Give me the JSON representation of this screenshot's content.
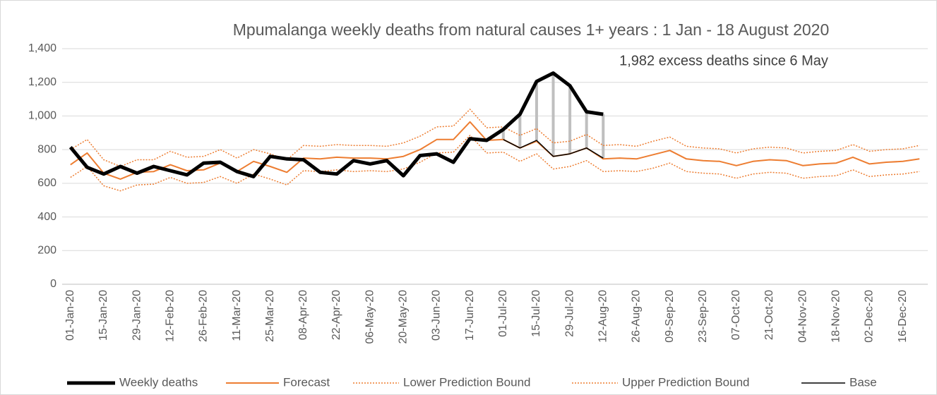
{
  "chart_data": {
    "type": "line",
    "title": "Mpumalanga weekly deaths from natural causes 1+ years : 1 Jan - 18 August 2020",
    "annotation": "1,982 excess deaths since 6 May",
    "categories": [
      "01-Jan-20",
      null,
      "15-Jan-20",
      null,
      "29-Jan-20",
      null,
      "12-Feb-20",
      null,
      "26-Feb-20",
      null,
      "11-Mar-20",
      null,
      "25-Mar-20",
      null,
      "08-Apr-20",
      null,
      "22-Apr-20",
      null,
      "06-May-20",
      null,
      "20-May-20",
      null,
      "03-Jun-20",
      null,
      "17-Jun-20",
      null,
      "01-Jul-20",
      null,
      "15-Jul-20",
      null,
      "29-Jul-20",
      null,
      "12-Aug-20",
      null,
      "26-Aug-20",
      null,
      "09-Sep-20",
      null,
      "23-Sep-20",
      null,
      "07-Oct-20",
      null,
      "21-Oct-20",
      null,
      "04-Nov-20",
      null,
      "18-Nov-20",
      null,
      "02-Dec-20",
      null,
      "16-Dec-20",
      null
    ],
    "series": [
      {
        "name": "Weekly deaths",
        "color": "#000000",
        "linestyle": "thick",
        "values": [
          815,
          695,
          655,
          700,
          660,
          700,
          675,
          650,
          720,
          725,
          670,
          640,
          760,
          745,
          740,
          665,
          655,
          735,
          715,
          735,
          645,
          765,
          775,
          725,
          865,
          855,
          920,
          1010,
          1205,
          1255,
          1180,
          1025,
          1010,
          null,
          null,
          null,
          null,
          null,
          null,
          null,
          null,
          null,
          null,
          null,
          null,
          null,
          null,
          null,
          null,
          null,
          null,
          null
        ]
      },
      {
        "name": "Forecast",
        "color": "#ed7d31",
        "linestyle": "solid",
        "values": [
          710,
          780,
          660,
          625,
          665,
          670,
          710,
          675,
          680,
          720,
          670,
          730,
          700,
          665,
          750,
          745,
          755,
          750,
          750,
          745,
          760,
          800,
          860,
          860,
          965,
          855,
          860,
          810,
          850,
          760,
          775,
          810,
          745,
          750,
          745,
          770,
          795,
          745,
          735,
          730,
          705,
          730,
          740,
          735,
          705,
          715,
          720,
          755,
          715,
          725,
          730,
          745
        ]
      },
      {
        "name": "Lower Prediction Bound",
        "color": "#ed7d31",
        "linestyle": "dotted",
        "values": [
          635,
          700,
          585,
          555,
          590,
          595,
          635,
          600,
          605,
          640,
          600,
          655,
          625,
          590,
          675,
          670,
          680,
          670,
          675,
          670,
          685,
          725,
          780,
          785,
          885,
          780,
          785,
          730,
          775,
          685,
          700,
          735,
          670,
          675,
          670,
          690,
          720,
          670,
          660,
          655,
          630,
          655,
          665,
          660,
          630,
          640,
          645,
          680,
          640,
          650,
          655,
          670
        ]
      },
      {
        "name": "Upper Prediction Bound",
        "color": "#ed7d31",
        "linestyle": "dotted",
        "values": [
          800,
          860,
          740,
          700,
          740,
          740,
          790,
          755,
          760,
          800,
          750,
          800,
          775,
          740,
          825,
          820,
          830,
          825,
          825,
          820,
          840,
          880,
          935,
          940,
          1040,
          930,
          935,
          885,
          925,
          840,
          850,
          890,
          825,
          830,
          820,
          850,
          875,
          820,
          810,
          805,
          780,
          805,
          815,
          810,
          780,
          790,
          795,
          830,
          790,
          800,
          805,
          825
        ]
      },
      {
        "name": "Base",
        "color": "#000000",
        "linestyle": "thin",
        "values": [
          null,
          null,
          null,
          null,
          null,
          null,
          null,
          null,
          null,
          null,
          null,
          null,
          null,
          null,
          null,
          null,
          null,
          null,
          null,
          null,
          null,
          null,
          null,
          null,
          null,
          null,
          860,
          810,
          855,
          760,
          775,
          810,
          750,
          null,
          null,
          null,
          null,
          null,
          null,
          null,
          null,
          null,
          null,
          null,
          null,
          null,
          null,
          null,
          null,
          null,
          null,
          null
        ]
      }
    ],
    "excess_color": "#bfbfbf",
    "ylim": [
      0,
      1400
    ],
    "yticks": [
      0,
      200,
      400,
      600,
      800,
      {
        "value": 1000,
        "label": "1,000"
      },
      {
        "value": 1200,
        "label": "1,200"
      },
      {
        "value": 1400,
        "label": "1,400"
      }
    ],
    "grid": true,
    "legend": "bottom"
  }
}
